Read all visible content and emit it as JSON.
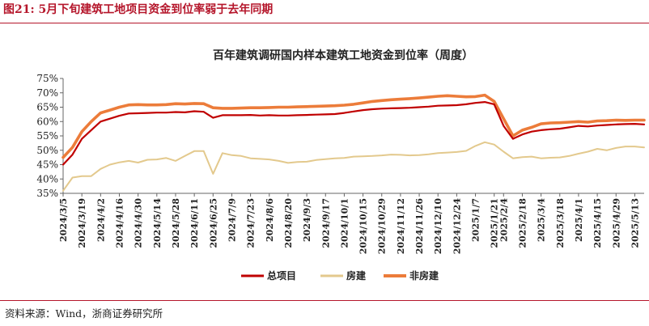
{
  "figure_label": "图21:  5月下旬建筑工地项目资金到位率弱于去年同期",
  "source_note": "资料来源：Wind，浙商证券研究所",
  "chart_data": {
    "type": "line",
    "title": "百年建筑调研国内样本建筑工地资金到位率（周度）",
    "xlabel": "",
    "ylabel": "",
    "ylim": [
      35,
      75
    ],
    "y_ticks": [
      "35%",
      "40%",
      "45%",
      "50%",
      "55%",
      "60%",
      "65%",
      "70%",
      "75%"
    ],
    "grid": false,
    "legend_position": "bottom",
    "x": [
      "2024/3/5",
      "2024/3/12",
      "2024/3/19",
      "2024/3/26",
      "2024/4/2",
      "2024/4/9",
      "2024/4/16",
      "2024/4/23",
      "2024/4/30",
      "2024/5/7",
      "2024/5/14",
      "2024/5/21",
      "2024/5/28",
      "2024/6/4",
      "2024/6/11",
      "2024/6/18",
      "2024/6/25",
      "2024/7/2",
      "2024/7/9",
      "2024/7/16",
      "2024/7/23",
      "2024/7/30",
      "2024/8/6",
      "2024/8/13",
      "2024/8/20",
      "2024/8/27",
      "2024/9/3",
      "2024/9/10",
      "2024/9/17",
      "2024/9/24",
      "2024/10/1",
      "2024/10/8",
      "2024/10/15",
      "2024/10/22",
      "2024/10/29",
      "2024/11/5",
      "2024/11/12",
      "2024/11/19",
      "2024/11/26",
      "2024/12/3",
      "2024/12/10",
      "2024/12/17",
      "2024/12/24",
      "2024/12/31",
      "2025/1/7",
      "2025/1/14",
      "2025/1/21",
      "2025/2/4",
      "2025/2/11",
      "2025/2/18",
      "2025/2/25",
      "2025/3/4",
      "2025/3/11",
      "2025/3/18",
      "2025/3/25",
      "2025/4/1",
      "2025/4/8",
      "2025/4/15",
      "2025/4/22",
      "2025/4/29",
      "2025/5/6",
      "2025/5/13",
      "2025/5/20"
    ],
    "x_tick_labels": [
      "2024/3/5",
      "2024/3/19",
      "2024/4/2",
      "2024/4/16",
      "2024/4/30",
      "2024/5/14",
      "2024/5/28",
      "2024/6/11",
      "2024/6/25",
      "2024/7/9",
      "2024/7/23",
      "2024/8/6",
      "2024/8/20",
      "2024/9/3",
      "2024/9/17",
      "2024/10/1",
      "2024/10/15",
      "2024/10/29",
      "2024/11/12",
      "2024/11/26",
      "2024/12/10",
      "2024/12/24",
      "2025/1/7",
      "2025/1/21",
      "2025/2/4",
      "2025/2/18",
      "2025/3/4",
      "2025/3/18",
      "2025/4/1",
      "2025/4/15",
      "2025/4/29",
      "2025/5/13"
    ],
    "series": [
      {
        "name": "总项目",
        "color": "#c00000",
        "values": [
          45.0,
          48.5,
          54.0,
          57.0,
          60.0,
          61.0,
          62.0,
          62.8,
          62.9,
          63.0,
          63.1,
          63.1,
          63.3,
          63.2,
          63.6,
          63.4,
          61.3,
          62.2,
          62.2,
          62.2,
          62.3,
          62.1,
          62.2,
          62.1,
          62.1,
          62.2,
          62.3,
          62.4,
          62.5,
          62.6,
          63.0,
          63.5,
          64.0,
          64.3,
          64.5,
          64.6,
          64.7,
          64.8,
          65.0,
          65.2,
          65.5,
          65.6,
          65.7,
          66.0,
          66.5,
          66.8,
          66.0,
          58.5,
          54.0,
          55.5,
          56.5,
          57.0,
          57.3,
          57.5,
          58.0,
          58.5,
          58.3,
          58.6,
          58.8,
          59.0,
          59.1,
          59.2,
          59.0
        ]
      },
      {
        "name": "房建",
        "color": "#e3c98d",
        "values": [
          35.9,
          40.5,
          41.0,
          41.0,
          43.5,
          45.0,
          45.8,
          46.3,
          45.7,
          46.7,
          46.8,
          47.3,
          46.3,
          48.0,
          49.7,
          49.7,
          41.8,
          49.0,
          48.3,
          48.0,
          47.2,
          47.0,
          46.8,
          46.3,
          45.6,
          45.9,
          46.0,
          46.6,
          46.9,
          47.2,
          47.3,
          47.8,
          47.9,
          48.0,
          48.2,
          48.5,
          48.4,
          48.2,
          48.3,
          48.6,
          49.0,
          49.2,
          49.4,
          49.8,
          51.5,
          52.8,
          52.0,
          49.5,
          47.2,
          47.6,
          47.8,
          47.2,
          47.4,
          47.5,
          48.0,
          48.8,
          49.5,
          50.5,
          50.0,
          50.8,
          51.3,
          51.3,
          51.0
        ]
      },
      {
        "name": "非房建",
        "color": "#ec7c3a",
        "values": [
          47.5,
          51.0,
          56.5,
          60.0,
          63.0,
          64.0,
          65.0,
          65.8,
          65.9,
          65.8,
          65.8,
          65.9,
          66.2,
          66.1,
          66.3,
          66.2,
          64.8,
          64.6,
          64.6,
          64.7,
          64.8,
          64.8,
          64.9,
          65.0,
          65.0,
          65.1,
          65.2,
          65.3,
          65.4,
          65.5,
          65.7,
          66.0,
          66.5,
          67.0,
          67.3,
          67.6,
          67.8,
          68.0,
          68.2,
          68.5,
          68.8,
          69.0,
          68.8,
          68.6,
          68.7,
          69.2,
          67.0,
          61.0,
          55.0,
          57.0,
          58.0,
          59.2,
          59.5,
          59.6,
          59.8,
          60.0,
          59.8,
          60.2,
          60.3,
          60.5,
          60.4,
          60.5,
          60.5
        ]
      }
    ]
  }
}
